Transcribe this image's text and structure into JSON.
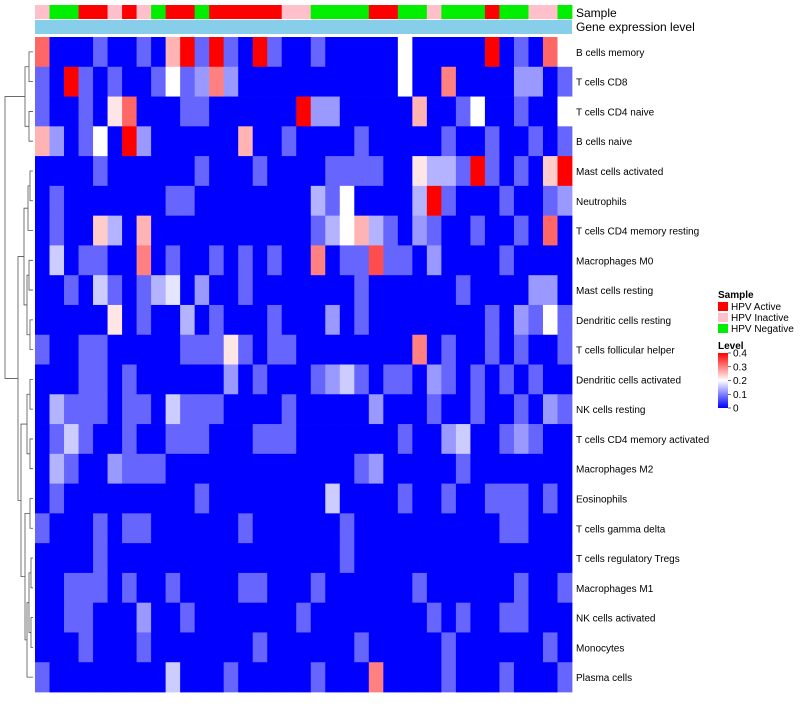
{
  "chart_data": {
    "type": "heatmap",
    "annotation_tracks": [
      "Sample",
      "Gene expression level"
    ],
    "sample_annotation": [
      "HPV Inactive",
      "HPV Negative",
      "HPV Negative",
      "HPV Active",
      "HPV Active",
      "HPV Inactive",
      "HPV Active",
      "HPV Inactive",
      "HPV Negative",
      "HPV Active",
      "HPV Active",
      "HPV Negative",
      "HPV Active",
      "HPV Active",
      "HPV Active",
      "HPV Active",
      "HPV Active",
      "HPV Inactive",
      "HPV Inactive",
      "HPV Negative",
      "HPV Negative",
      "HPV Negative",
      "HPV Negative",
      "HPV Active",
      "HPV Active",
      "HPV Negative",
      "HPV Negative",
      "HPV Inactive",
      "HPV Negative",
      "HPV Negative",
      "HPV Negative",
      "HPV Active",
      "HPV Negative",
      "HPV Negative",
      "HPV Inactive",
      "HPV Inactive",
      "HPV Negative"
    ],
    "rows": [
      "B cells memory",
      "T cells CD8",
      "T cells CD4 naive",
      "B cells naive",
      "Mast cells activated",
      "Neutrophils",
      "T cells CD4 memory resting",
      "Macrophages M0",
      "Mast cells resting",
      "Dendritic cells resting",
      "T cells follicular helper",
      "Dendritic cells activated",
      "NK cells resting",
      "T cells CD4 memory activated",
      "Macrophages M2",
      "Eosinophils",
      "T cells gamma delta",
      "T cells regulatory  Tregs",
      "Macrophages M1",
      "NK cells activated",
      "Monocytes",
      "Plasma cells"
    ],
    "values": [
      [
        0.32,
        0.0,
        0.0,
        0.0,
        0.08,
        0.0,
        0.0,
        0.08,
        0.0,
        0.26,
        0.4,
        0.08,
        0.4,
        0.08,
        0.0,
        0.4,
        0.08,
        0.0,
        0.0,
        0.08,
        0.0,
        0.0,
        0.0,
        0.0,
        0.0,
        0.2,
        0.0,
        0.0,
        0.0,
        0.0,
        0.0,
        0.4,
        0.0,
        0.08,
        0.0,
        0.32,
        0.2
      ],
      [
        0.08,
        0.0,
        0.4,
        0.08,
        0.0,
        0.08,
        0.0,
        0.0,
        0.08,
        0.2,
        0.08,
        0.12,
        0.3,
        0.12,
        0.0,
        0.0,
        0.0,
        0.0,
        0.0,
        0.0,
        0.0,
        0.0,
        0.0,
        0.0,
        0.0,
        0.2,
        0.0,
        0.0,
        0.3,
        0.0,
        0.0,
        0.0,
        0.0,
        0.12,
        0.12,
        0.0,
        0.08
      ],
      [
        0.08,
        0.0,
        0.0,
        0.08,
        0.0,
        0.22,
        0.32,
        0.0,
        0.0,
        0.0,
        0.08,
        0.08,
        0.0,
        0.0,
        0.0,
        0.0,
        0.0,
        0.0,
        0.4,
        0.12,
        0.12,
        0.0,
        0.0,
        0.0,
        0.0,
        0.0,
        0.26,
        0.0,
        0.0,
        0.08,
        0.2,
        0.0,
        0.0,
        0.08,
        0.0,
        0.0,
        0.2
      ],
      [
        0.26,
        0.12,
        0.0,
        0.08,
        0.2,
        0.0,
        0.4,
        0.12,
        0.0,
        0.0,
        0.0,
        0.0,
        0.0,
        0.0,
        0.26,
        0.0,
        0.0,
        0.08,
        0.0,
        0.0,
        0.0,
        0.0,
        0.08,
        0.0,
        0.0,
        0.0,
        0.0,
        0.0,
        0.08,
        0.0,
        0.0,
        0.08,
        0.0,
        0.0,
        0.08,
        0.0,
        0.08
      ],
      [
        0.0,
        0.0,
        0.0,
        0.0,
        0.08,
        0.0,
        0.0,
        0.0,
        0.0,
        0.0,
        0.0,
        0.08,
        0.0,
        0.0,
        0.0,
        0.08,
        0.0,
        0.0,
        0.0,
        0.0,
        0.08,
        0.08,
        0.08,
        0.08,
        0.0,
        0.0,
        0.22,
        0.14,
        0.14,
        0.08,
        0.4,
        0.08,
        0.0,
        0.08,
        0.0,
        0.24,
        0.4
      ],
      [
        0.0,
        0.08,
        0.0,
        0.0,
        0.0,
        0.0,
        0.0,
        0.0,
        0.0,
        0.08,
        0.08,
        0.0,
        0.0,
        0.0,
        0.0,
        0.0,
        0.0,
        0.0,
        0.0,
        0.14,
        0.08,
        0.2,
        0.0,
        0.0,
        0.0,
        0.0,
        0.14,
        0.4,
        0.08,
        0.0,
        0.0,
        0.0,
        0.08,
        0.0,
        0.0,
        0.08,
        0.12
      ],
      [
        0.0,
        0.08,
        0.0,
        0.0,
        0.24,
        0.14,
        0.0,
        0.26,
        0.0,
        0.0,
        0.0,
        0.0,
        0.0,
        0.0,
        0.0,
        0.0,
        0.0,
        0.0,
        0.0,
        0.08,
        0.14,
        0.2,
        0.26,
        0.14,
        0.08,
        0.0,
        0.12,
        0.08,
        0.0,
        0.0,
        0.08,
        0.0,
        0.0,
        0.08,
        0.0,
        0.32,
        0.0
      ],
      [
        0.0,
        0.16,
        0.0,
        0.08,
        0.08,
        0.0,
        0.0,
        0.3,
        0.0,
        0.08,
        0.0,
        0.0,
        0.08,
        0.0,
        0.08,
        0.0,
        0.08,
        0.0,
        0.0,
        0.3,
        0.0,
        0.08,
        0.08,
        0.34,
        0.08,
        0.08,
        0.0,
        0.12,
        0.0,
        0.0,
        0.0,
        0.0,
        0.08,
        0.0,
        0.0,
        0.0,
        0.0
      ],
      [
        0.0,
        0.0,
        0.08,
        0.0,
        0.16,
        0.08,
        0.0,
        0.08,
        0.14,
        0.18,
        0.0,
        0.12,
        0.0,
        0.0,
        0.08,
        0.0,
        0.0,
        0.0,
        0.0,
        0.0,
        0.0,
        0.0,
        0.08,
        0.0,
        0.0,
        0.0,
        0.0,
        0.0,
        0.0,
        0.08,
        0.0,
        0.0,
        0.0,
        0.0,
        0.12,
        0.12,
        0.0
      ],
      [
        0.0,
        0.0,
        0.0,
        0.0,
        0.0,
        0.22,
        0.0,
        0.08,
        0.0,
        0.0,
        0.14,
        0.0,
        0.08,
        0.0,
        0.0,
        0.0,
        0.08,
        0.0,
        0.0,
        0.0,
        0.12,
        0.0,
        0.08,
        0.0,
        0.0,
        0.0,
        0.0,
        0.0,
        0.0,
        0.0,
        0.0,
        0.08,
        0.0,
        0.12,
        0.08,
        0.2,
        0.08
      ],
      [
        0.08,
        0.0,
        0.0,
        0.08,
        0.08,
        0.0,
        0.0,
        0.0,
        0.0,
        0.0,
        0.08,
        0.08,
        0.08,
        0.22,
        0.08,
        0.0,
        0.08,
        0.08,
        0.0,
        0.0,
        0.0,
        0.0,
        0.0,
        0.0,
        0.0,
        0.0,
        0.3,
        0.0,
        0.08,
        0.0,
        0.0,
        0.08,
        0.0,
        0.08,
        0.0,
        0.0,
        0.08
      ],
      [
        0.0,
        0.0,
        0.0,
        0.08,
        0.08,
        0.0,
        0.08,
        0.0,
        0.0,
        0.0,
        0.0,
        0.0,
        0.0,
        0.12,
        0.0,
        0.08,
        0.0,
        0.0,
        0.0,
        0.08,
        0.12,
        0.16,
        0.08,
        0.0,
        0.08,
        0.08,
        0.0,
        0.12,
        0.08,
        0.0,
        0.08,
        0.0,
        0.08,
        0.0,
        0.08,
        0.0,
        0.0
      ],
      [
        0.0,
        0.14,
        0.08,
        0.08,
        0.08,
        0.0,
        0.08,
        0.08,
        0.0,
        0.16,
        0.08,
        0.08,
        0.08,
        0.0,
        0.0,
        0.0,
        0.0,
        0.08,
        0.0,
        0.0,
        0.0,
        0.0,
        0.0,
        0.12,
        0.0,
        0.0,
        0.0,
        0.08,
        0.0,
        0.0,
        0.08,
        0.0,
        0.0,
        0.08,
        0.0,
        0.12,
        0.08
      ],
      [
        0.0,
        0.08,
        0.16,
        0.08,
        0.0,
        0.0,
        0.08,
        0.0,
        0.0,
        0.08,
        0.08,
        0.08,
        0.0,
        0.0,
        0.0,
        0.08,
        0.08,
        0.08,
        0.0,
        0.0,
        0.0,
        0.0,
        0.0,
        0.0,
        0.0,
        0.08,
        0.0,
        0.0,
        0.12,
        0.16,
        0.0,
        0.0,
        0.08,
        0.12,
        0.08,
        0.0,
        0.0
      ],
      [
        0.0,
        0.14,
        0.08,
        0.0,
        0.0,
        0.12,
        0.08,
        0.08,
        0.08,
        0.0,
        0.0,
        0.0,
        0.0,
        0.0,
        0.0,
        0.0,
        0.0,
        0.0,
        0.0,
        0.0,
        0.0,
        0.0,
        0.08,
        0.12,
        0.0,
        0.0,
        0.0,
        0.0,
        0.0,
        0.08,
        0.0,
        0.0,
        0.0,
        0.0,
        0.0,
        0.0,
        0.0
      ],
      [
        0.0,
        0.08,
        0.0,
        0.0,
        0.0,
        0.0,
        0.0,
        0.0,
        0.0,
        0.0,
        0.0,
        0.08,
        0.0,
        0.0,
        0.0,
        0.0,
        0.0,
        0.0,
        0.0,
        0.0,
        0.16,
        0.0,
        0.0,
        0.0,
        0.0,
        0.08,
        0.0,
        0.0,
        0.08,
        0.0,
        0.0,
        0.08,
        0.08,
        0.08,
        0.0,
        0.08,
        0.0
      ],
      [
        0.08,
        0.0,
        0.0,
        0.0,
        0.08,
        0.0,
        0.08,
        0.08,
        0.0,
        0.0,
        0.0,
        0.0,
        0.0,
        0.0,
        0.08,
        0.0,
        0.0,
        0.0,
        0.0,
        0.0,
        0.0,
        0.08,
        0.0,
        0.0,
        0.0,
        0.0,
        0.0,
        0.0,
        0.0,
        0.0,
        0.0,
        0.0,
        0.08,
        0.08,
        0.0,
        0.0,
        0.0
      ],
      [
        0.0,
        0.0,
        0.0,
        0.0,
        0.08,
        0.0,
        0.0,
        0.0,
        0.0,
        0.0,
        0.0,
        0.0,
        0.0,
        0.0,
        0.0,
        0.0,
        0.0,
        0.0,
        0.0,
        0.0,
        0.0,
        0.08,
        0.0,
        0.0,
        0.0,
        0.0,
        0.0,
        0.0,
        0.0,
        0.0,
        0.0,
        0.0,
        0.0,
        0.0,
        0.0,
        0.0,
        0.0
      ],
      [
        0.0,
        0.0,
        0.08,
        0.08,
        0.08,
        0.0,
        0.08,
        0.0,
        0.0,
        0.08,
        0.0,
        0.0,
        0.0,
        0.0,
        0.08,
        0.08,
        0.0,
        0.0,
        0.0,
        0.08,
        0.0,
        0.0,
        0.0,
        0.0,
        0.0,
        0.0,
        0.08,
        0.0,
        0.0,
        0.0,
        0.0,
        0.0,
        0.0,
        0.08,
        0.0,
        0.0,
        0.08
      ],
      [
        0.0,
        0.0,
        0.08,
        0.08,
        0.0,
        0.0,
        0.0,
        0.12,
        0.0,
        0.0,
        0.08,
        0.0,
        0.0,
        0.0,
        0.0,
        0.0,
        0.0,
        0.0,
        0.08,
        0.0,
        0.0,
        0.0,
        0.0,
        0.0,
        0.0,
        0.0,
        0.0,
        0.08,
        0.0,
        0.08,
        0.0,
        0.0,
        0.08,
        0.08,
        0.0,
        0.0,
        0.0
      ],
      [
        0.0,
        0.0,
        0.0,
        0.08,
        0.0,
        0.0,
        0.0,
        0.08,
        0.0,
        0.0,
        0.0,
        0.0,
        0.0,
        0.0,
        0.0,
        0.08,
        0.0,
        0.0,
        0.0,
        0.0,
        0.0,
        0.0,
        0.08,
        0.0,
        0.0,
        0.0,
        0.0,
        0.0,
        0.08,
        0.0,
        0.0,
        0.0,
        0.0,
        0.0,
        0.0,
        0.08,
        0.0
      ],
      [
        0.08,
        0.0,
        0.0,
        0.0,
        0.0,
        0.0,
        0.0,
        0.0,
        0.0,
        0.16,
        0.0,
        0.0,
        0.0,
        0.08,
        0.0,
        0.0,
        0.0,
        0.0,
        0.0,
        0.08,
        0.0,
        0.0,
        0.0,
        0.3,
        0.0,
        0.0,
        0.0,
        0.0,
        0.08,
        0.0,
        0.0,
        0.0,
        0.08,
        0.0,
        0.0,
        0.0,
        0.08
      ]
    ],
    "legend": {
      "sample": {
        "title": "Sample",
        "items": [
          {
            "label": "HPV Active",
            "color": "#ff0000"
          },
          {
            "label": "HPV Inactive",
            "color": "#ffc0cb"
          },
          {
            "label": "HPV Negative",
            "color": "#00ee00"
          }
        ]
      },
      "level": {
        "title": "Level",
        "ticks": [
          "0.4",
          "0.3",
          "0.2",
          "0.1",
          "0"
        ],
        "tick_values": [
          0.4,
          0.3,
          0.2,
          0.1,
          0
        ],
        "range": [
          0,
          0.4
        ],
        "colors": {
          "low": "#0000ff",
          "mid": "#ffffff",
          "high": "#ff0000"
        }
      }
    },
    "gene_expression_color": "#87ceeb",
    "dendrogram": "hierarchical clustering of rows"
  }
}
